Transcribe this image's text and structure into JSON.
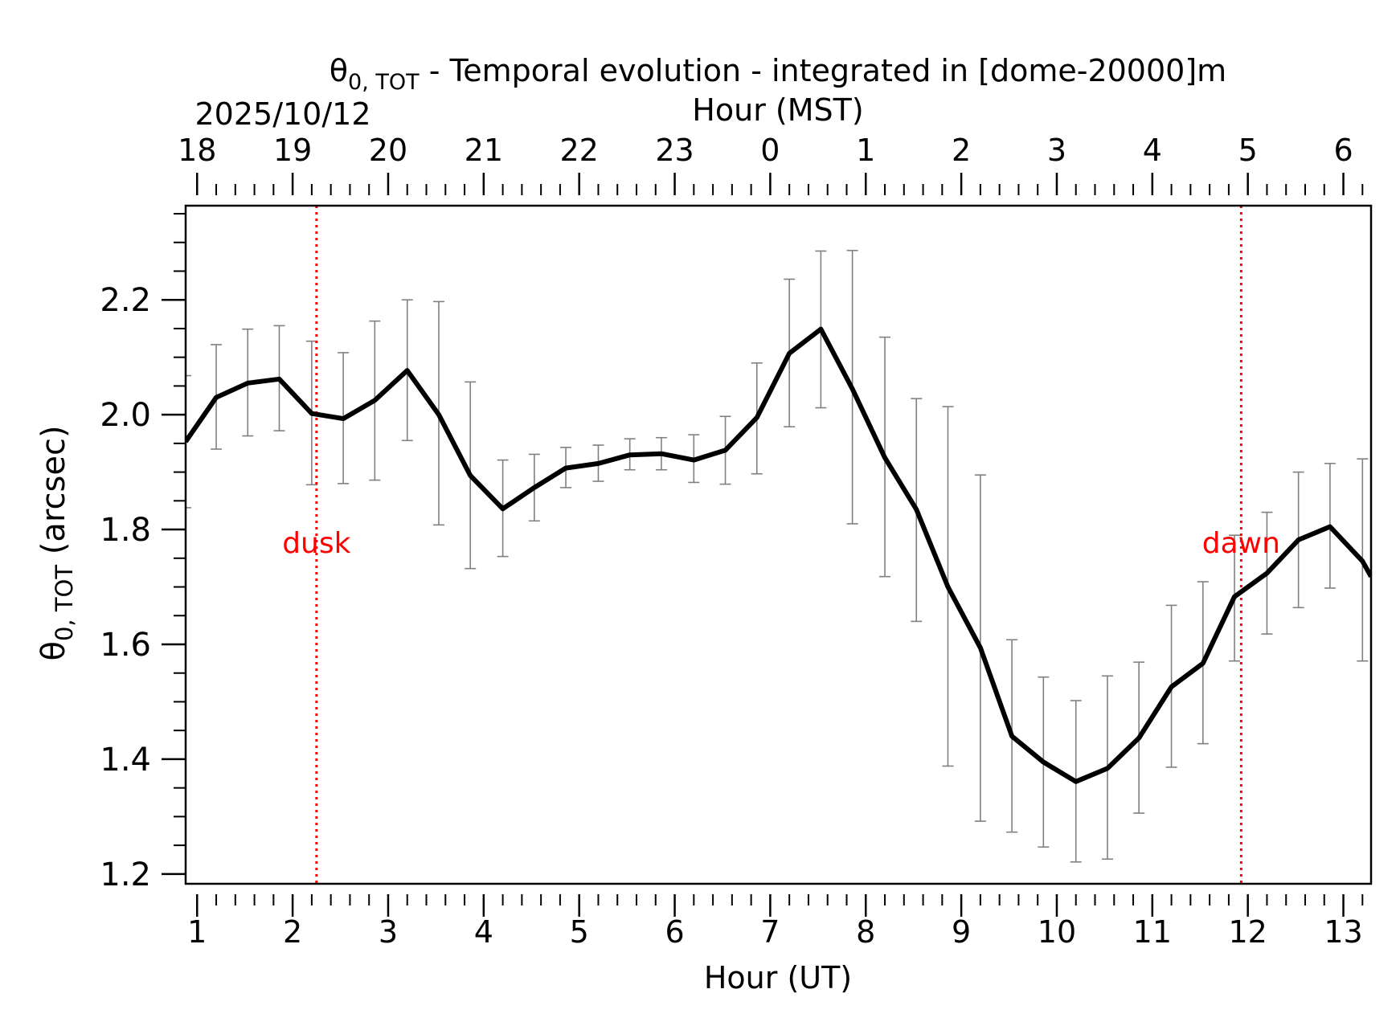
{
  "chart_data": {
    "type": "line",
    "title_symbol": "θ",
    "title_sub": "0, TOT",
    "title_rest": " - Temporal evolution - integrated in [dome-20000]m",
    "date_label": "2025/10/12",
    "xlabel": "Hour (UT)",
    "x2label": "Hour (MST)",
    "ylabel_symbol": "θ",
    "ylabel_sub": "0, TOT",
    "ylabel_rest": " (arcsec)",
    "xlim": [
      0.88,
      13.29
    ],
    "ylim": [
      1.183,
      2.364
    ],
    "x_ticks": [
      1,
      2,
      3,
      4,
      5,
      6,
      7,
      8,
      9,
      10,
      11,
      12,
      13
    ],
    "x_tick_labels": [
      "1",
      "2",
      "3",
      "4",
      "5",
      "6",
      "7",
      "8",
      "9",
      "10",
      "11",
      "12",
      "13"
    ],
    "x2_tick_labels": [
      "18",
      "19",
      "20",
      "21",
      "22",
      "23",
      "0",
      "1",
      "2",
      "3",
      "4",
      "5",
      "6"
    ],
    "y_ticks": [
      1.2,
      1.4,
      1.6,
      1.8,
      2.0,
      2.2
    ],
    "y_tick_labels": [
      "1.2",
      "1.4",
      "1.6",
      "1.8",
      "2.0",
      "2.2"
    ],
    "colors": {
      "line": "#000000",
      "errorbar": "#808080",
      "marker": "#ff0000"
    },
    "series": [
      {
        "name": "θ0,TOT",
        "x": [
          0.88,
          1.2,
          1.53,
          1.86,
          2.2,
          2.53,
          2.86,
          3.2,
          3.53,
          3.86,
          4.2,
          4.53,
          4.86,
          5.2,
          5.53,
          5.86,
          6.2,
          6.53,
          6.86,
          7.2,
          7.53,
          7.86,
          8.2,
          8.53,
          8.86,
          9.2,
          9.53,
          9.86,
          10.2,
          10.53,
          10.86,
          11.2,
          11.53,
          11.86,
          12.2,
          12.53,
          12.86,
          13.2,
          13.29
        ],
        "y": [
          1.953,
          2.03,
          2.055,
          2.062,
          2.002,
          1.993,
          2.025,
          2.077,
          2.0,
          1.894,
          1.836,
          1.873,
          1.907,
          1.915,
          1.93,
          1.932,
          1.921,
          1.938,
          1.995,
          2.107,
          2.149,
          2.045,
          1.925,
          1.835,
          1.7,
          1.594,
          1.44,
          1.395,
          1.361,
          1.384,
          1.437,
          1.526,
          1.567,
          1.683,
          1.724,
          1.782,
          1.805,
          1.745,
          1.718
        ],
        "err_low": [
          1.838,
          1.94,
          1.963,
          1.972,
          1.878,
          1.88,
          1.886,
          1.955,
          1.808,
          1.732,
          1.753,
          1.815,
          1.873,
          1.884,
          1.904,
          1.904,
          1.882,
          1.879,
          1.897,
          1.979,
          2.012,
          1.81,
          1.718,
          1.64,
          1.388,
          1.292,
          1.273,
          1.247,
          1.221,
          1.226,
          1.306,
          1.386,
          1.427,
          1.571,
          1.618,
          1.664,
          1.698,
          1.571,
          null
        ],
        "err_high": [
          2.068,
          2.122,
          2.149,
          2.155,
          2.128,
          2.108,
          2.163,
          2.2,
          2.197,
          2.057,
          1.921,
          1.931,
          1.943,
          1.947,
          1.958,
          1.96,
          1.965,
          1.997,
          2.09,
          2.236,
          2.285,
          2.286,
          2.135,
          2.028,
          2.014,
          1.895,
          1.608,
          1.543,
          1.502,
          1.545,
          1.569,
          1.668,
          1.709,
          1.79,
          1.83,
          1.9,
          1.915,
          1.923,
          null
        ]
      }
    ],
    "annotations": [
      {
        "label": "dusk",
        "x": 2.25
      },
      {
        "label": "dawn",
        "x": 11.93
      }
    ]
  }
}
